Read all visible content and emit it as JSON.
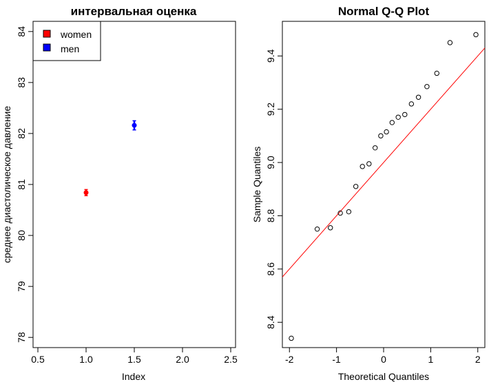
{
  "chart_data": [
    {
      "type": "scatter",
      "title": "интервальная оценка",
      "xlabel": "Index",
      "ylabel": "среднее диастолическое давление",
      "xlim": [
        0.45,
        2.55
      ],
      "ylim": [
        77.8,
        84.2
      ],
      "x_ticks": [
        "0.5",
        "1.0",
        "1.5",
        "2.0",
        "2.5"
      ],
      "y_ticks": [
        "78",
        "79",
        "80",
        "81",
        "82",
        "83",
        "84"
      ],
      "grid": false,
      "legend": "top-left",
      "series": [
        {
          "name": "women",
          "color": "#ff0000",
          "x": 1.0,
          "y": 80.84,
          "ci": [
            80.78,
            80.9
          ]
        },
        {
          "name": "men",
          "color": "#0000ff",
          "x": 1.5,
          "y": 82.16,
          "ci": [
            82.07,
            82.25
          ]
        }
      ]
    },
    {
      "type": "scatter",
      "title": "Normal Q-Q Plot",
      "xlabel": "Theoretical Quantiles",
      "ylabel": "Sample Quantiles",
      "xlim": [
        -2.15,
        2.15
      ],
      "ylim": [
        8.305,
        9.53
      ],
      "x_ticks": [
        "-2",
        "-1",
        "0",
        "1",
        "2"
      ],
      "y_ticks": [
        "8.4",
        "8.6",
        "8.8",
        "9.0",
        "9.2",
        "9.4"
      ],
      "grid": false,
      "reference_line": {
        "color": "#ff0000",
        "intercept": 9.0,
        "slope": 0.2
      },
      "points": [
        {
          "x": -1.96,
          "y": 8.34
        },
        {
          "x": -1.41,
          "y": 8.75
        },
        {
          "x": -1.13,
          "y": 8.755
        },
        {
          "x": -0.92,
          "y": 8.81
        },
        {
          "x": -0.74,
          "y": 8.815
        },
        {
          "x": -0.59,
          "y": 8.91
        },
        {
          "x": -0.45,
          "y": 8.985
        },
        {
          "x": -0.31,
          "y": 8.995
        },
        {
          "x": -0.18,
          "y": 9.055
        },
        {
          "x": -0.06,
          "y": 9.1
        },
        {
          "x": 0.06,
          "y": 9.115
        },
        {
          "x": 0.18,
          "y": 9.15
        },
        {
          "x": 0.31,
          "y": 9.17
        },
        {
          "x": 0.45,
          "y": 9.18
        },
        {
          "x": 0.59,
          "y": 9.22
        },
        {
          "x": 0.74,
          "y": 9.245
        },
        {
          "x": 0.92,
          "y": 9.285
        },
        {
          "x": 1.13,
          "y": 9.335
        },
        {
          "x": 1.41,
          "y": 9.45
        },
        {
          "x": 1.96,
          "y": 9.48
        }
      ]
    }
  ]
}
